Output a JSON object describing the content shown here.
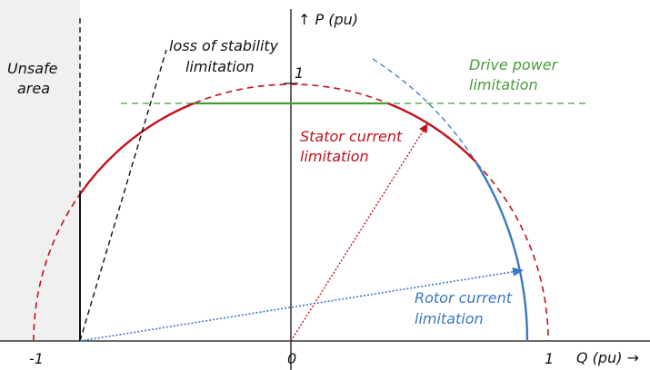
{
  "axes": {
    "p_label": "↑ P (pu)",
    "q_label": "Q (pu) →",
    "p_one": "1",
    "q_minus_one": "-1",
    "q_zero": "0",
    "q_one": "1"
  },
  "regions": {
    "unsafe": [
      "Unsafe",
      "area"
    ]
  },
  "limits": {
    "stability": [
      "loss of stability",
      "limitation"
    ],
    "drive_power": [
      "Drive power",
      "limitation"
    ],
    "stator_current": [
      "Stator current",
      "limitation"
    ],
    "rotor_current": [
      "Rotor current",
      "limitation"
    ]
  }
}
